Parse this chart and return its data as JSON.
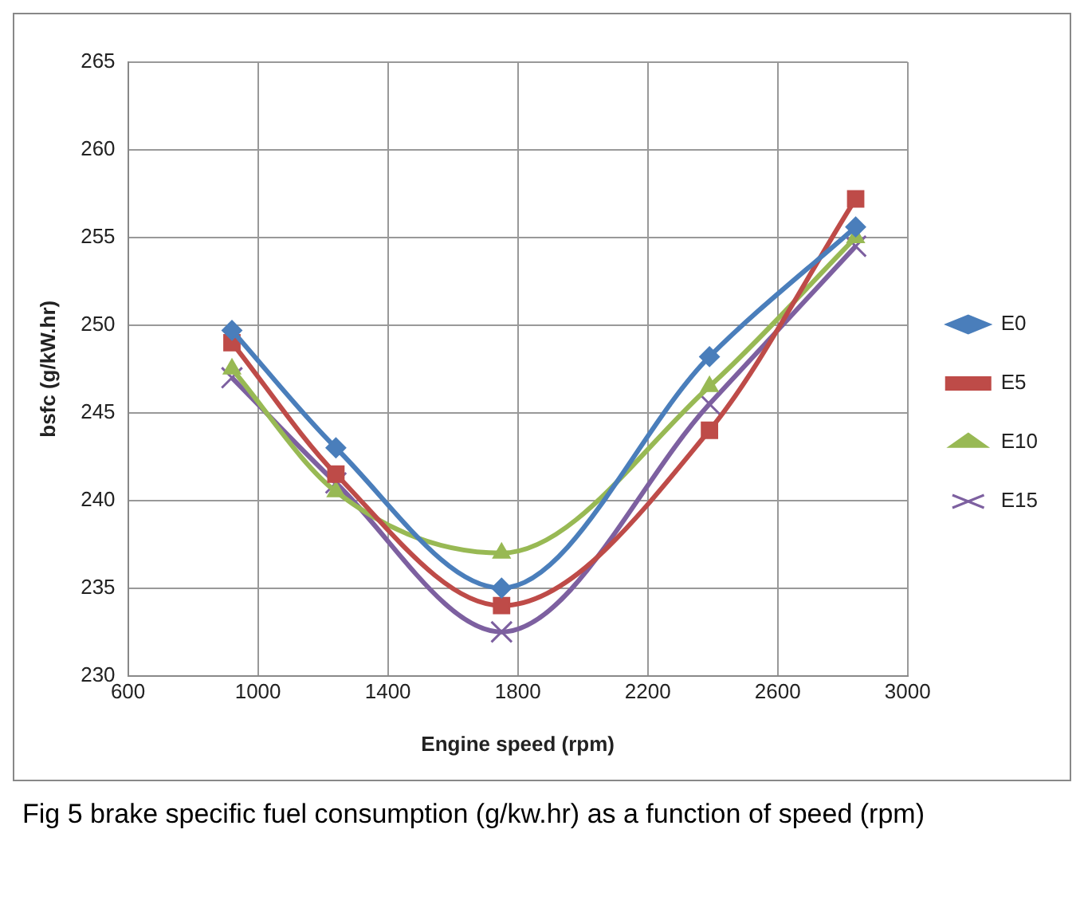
{
  "chart_data": {
    "type": "line",
    "xlabel": "Engine speed (rpm)",
    "ylabel": "bsfc (g/kW.hr)",
    "x": [
      920,
      1240,
      1750,
      2390,
      2840
    ],
    "xlim": [
      600,
      3000
    ],
    "xticks": [
      600,
      1000,
      1400,
      1800,
      2200,
      2600,
      3000
    ],
    "ylim": [
      230,
      265
    ],
    "yticks": [
      230,
      235,
      240,
      245,
      250,
      255,
      260,
      265
    ],
    "grid": true,
    "legend": "right",
    "line_style": "solid",
    "series": [
      {
        "name": "E0",
        "color": "#4a7ebb",
        "marker": "diamond",
        "values": [
          249.7,
          243,
          235,
          248.2,
          255.6
        ]
      },
      {
        "name": "E5",
        "color": "#be4b48",
        "marker": "square",
        "values": [
          249,
          241.5,
          234,
          244,
          257.2
        ]
      },
      {
        "name": "E10",
        "color": "#98b954",
        "marker": "triangle",
        "values": [
          247.5,
          240.5,
          237,
          246.5,
          255
        ]
      },
      {
        "name": "E15",
        "color": "#7d60a0",
        "marker": "cross",
        "values": [
          247,
          241,
          232.5,
          245.5,
          254.5
        ]
      }
    ],
    "annotations": [
      "Fig 5 brake specific fuel consumption (g/kw.hr) as a function of speed (rpm)"
    ]
  }
}
